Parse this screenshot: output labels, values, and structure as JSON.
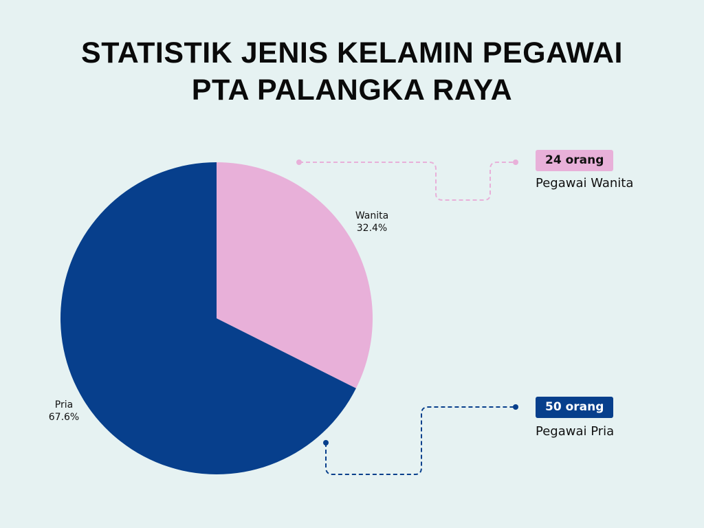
{
  "chart_data": {
    "type": "pie",
    "title_line1": "STATISTIK JENIS KELAMIN PEGAWAI",
    "title_line2": "PTA PALANGKA RAYA",
    "slices": [
      {
        "label": "Wanita",
        "percent": 32.4,
        "percent_label": "32.4%",
        "count_label": "24 orang",
        "description": "Pegawai Wanita",
        "color": "#e8b0d9"
      },
      {
        "label": "Pria",
        "percent": 67.6,
        "percent_label": "67.6%",
        "count_label": "50 orang",
        "description": "Pegawai Pria",
        "color": "#073f8c"
      }
    ],
    "start_angle": "12 o'clock",
    "direction": "clockwise"
  }
}
